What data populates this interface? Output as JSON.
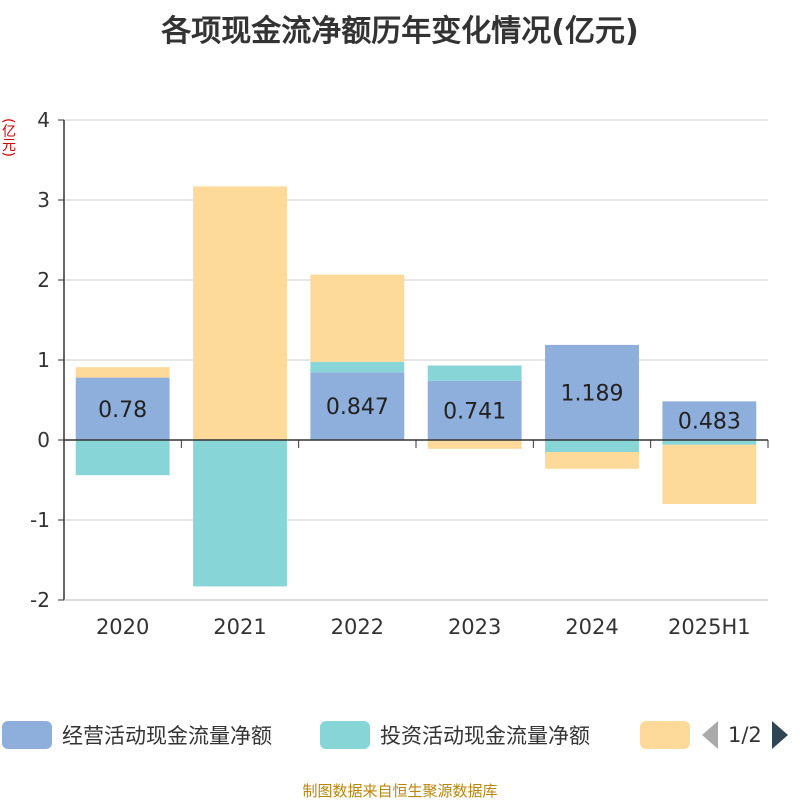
{
  "chart_data": {
    "type": "bar",
    "stacked": true,
    "title": "各项现金流净额历年变化情况(亿元)",
    "ylabel": "(亿元)",
    "xlabel": "",
    "ylim": [
      -2,
      4
    ],
    "yticks": [
      -2,
      -1,
      0,
      1,
      2,
      3,
      4
    ],
    "grid": true,
    "legend_position": "bottom",
    "categories": [
      "2020",
      "2021",
      "2022",
      "2023",
      "2024",
      "2025H1"
    ],
    "series": [
      {
        "name": "经营活动现金流量净额",
        "color": "#8eaedb",
        "values": [
          0.78,
          0.0,
          0.847,
          0.741,
          1.189,
          0.483
        ],
        "labels": [
          "0.78",
          "",
          "0.847",
          "0.741",
          "1.189",
          "0.483"
        ]
      },
      {
        "name": "投资活动现金流量净额",
        "color": "#88d5d8",
        "values": [
          -0.44,
          -1.83,
          0.13,
          0.19,
          -0.15,
          -0.06
        ]
      },
      {
        "name": "",
        "color": "#fdd99a",
        "values": [
          0.13,
          3.17,
          1.09,
          -0.11,
          -0.21,
          -0.74
        ]
      }
    ]
  },
  "legend": {
    "items": [
      {
        "label": "经营活动现金流量净额",
        "color": "#8eaedb"
      },
      {
        "label": "投资活动现金流量净额",
        "color": "#88d5d8"
      },
      {
        "label": "",
        "color": "#fdd99a"
      }
    ],
    "page": "1/2"
  },
  "source": "制图数据来自恒生聚源数据库"
}
